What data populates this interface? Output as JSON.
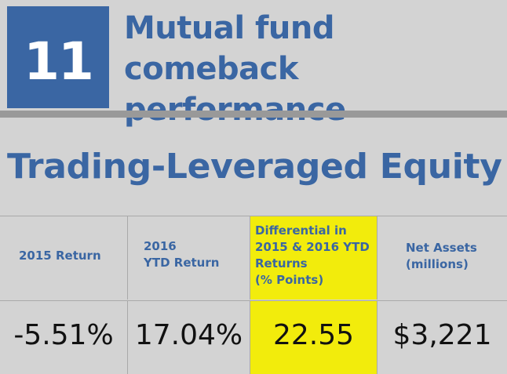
{
  "rank": "11",
  "title": "Mutual fund comeback performance",
  "subtitle": "Trading-Leveraged Equity",
  "columns": [
    {
      "label": "2015 Return"
    },
    {
      "label": "2016\nYTD Return"
    },
    {
      "label": "Differential in\n2015 & 2016 YTD\nReturns\n(% Points)"
    },
    {
      "label": "Net Assets\n(millions)"
    }
  ],
  "values": [
    "-5.51%",
    "17.04%",
    "22.55",
    "$3,221"
  ],
  "colors": {
    "accent": "#3a66a3",
    "highlight": "#f2ec0c",
    "background": "#d3d3d3",
    "rule": "#999999"
  }
}
